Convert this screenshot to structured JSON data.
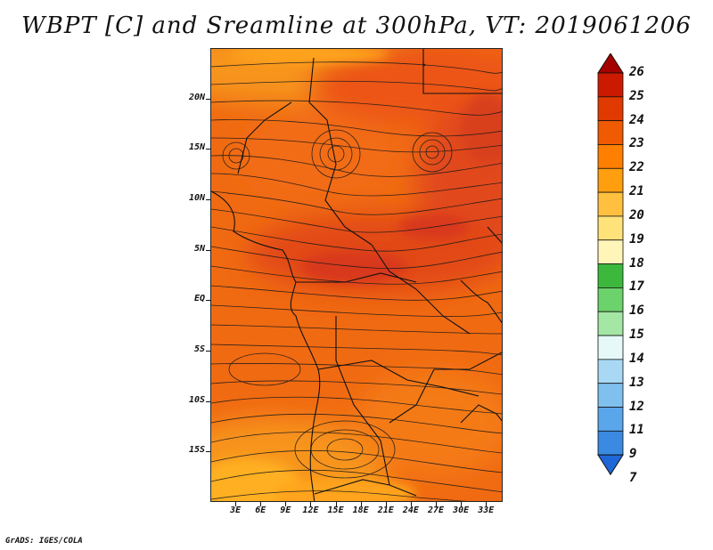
{
  "title": "WBPT [C] and Sreamline at 300hPa, VT: 2019061206",
  "credit": "GrADS: IGES/COLA",
  "map": {
    "variable": "WBPT",
    "units": "C",
    "level": "300hPa",
    "valid_time": "2019061206",
    "lon_range": [
      0,
      35
    ],
    "lat_range": [
      -20,
      25
    ],
    "y_ticks": [
      {
        "label": "20N",
        "lat": 20
      },
      {
        "label": "15N",
        "lat": 15
      },
      {
        "label": "10N",
        "lat": 10
      },
      {
        "label": "5N",
        "lat": 5
      },
      {
        "label": "EQ",
        "lat": 0
      },
      {
        "label": "5S",
        "lat": -5
      },
      {
        "label": "10S",
        "lat": -10
      },
      {
        "label": "15S",
        "lat": -15
      }
    ],
    "x_ticks": [
      {
        "label": "3E",
        "lon": 3
      },
      {
        "label": "6E",
        "lon": 6
      },
      {
        "label": "9E",
        "lon": 9
      },
      {
        "label": "12E",
        "lon": 12
      },
      {
        "label": "15E",
        "lon": 15
      },
      {
        "label": "18E",
        "lon": 18
      },
      {
        "label": "21E",
        "lon": 21
      },
      {
        "label": "24E",
        "lon": 24
      },
      {
        "label": "27E",
        "lon": 27
      },
      {
        "label": "30E",
        "lon": 30
      },
      {
        "label": "33E",
        "lon": 33
      }
    ]
  },
  "colorbar": {
    "labels": [
      "26",
      "25",
      "24",
      "23",
      "22",
      "21",
      "20",
      "19",
      "18",
      "17",
      "16",
      "15",
      "14",
      "13",
      "12",
      "11",
      "9",
      "7"
    ],
    "colors": [
      "#a50000",
      "#cc1a00",
      "#e03a00",
      "#f05a00",
      "#ff7f00",
      "#ff9f10",
      "#ffc040",
      "#ffe27a",
      "#fff5b8",
      "#3cb93c",
      "#6cd26c",
      "#a4e6a4",
      "#e6f8f8",
      "#a8d8f4",
      "#80c0ef",
      "#5aa6ea",
      "#3a8ae2",
      "#1f66d6"
    ]
  }
}
